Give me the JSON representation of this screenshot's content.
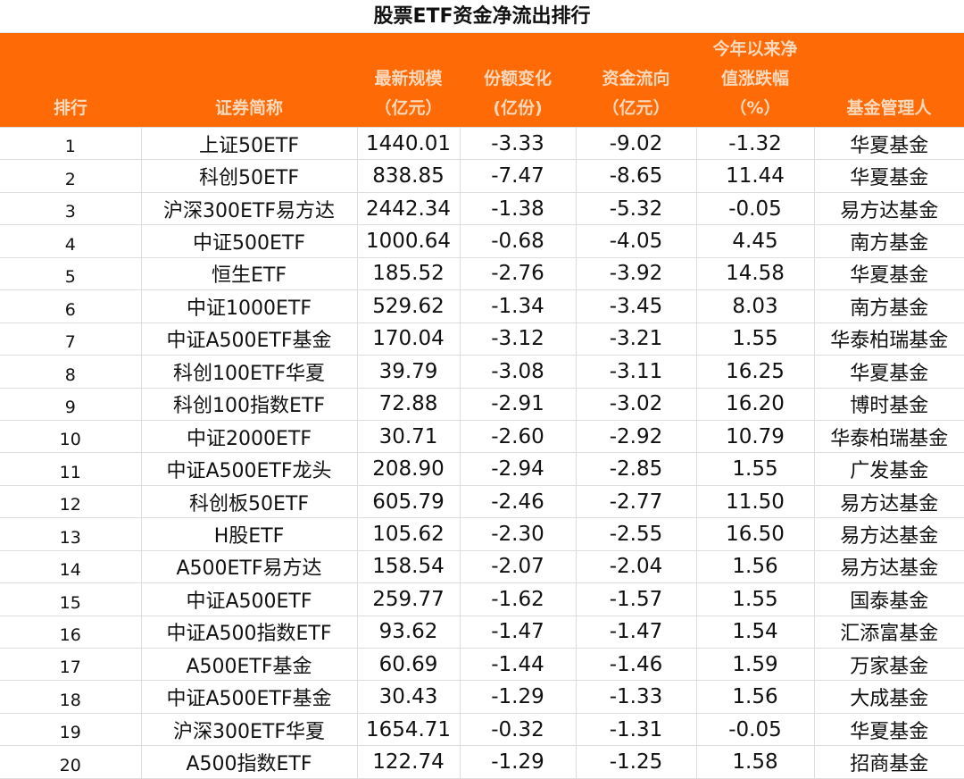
{
  "title": "股票ETF资金净流出排行",
  "header": {
    "rank": "排行",
    "name": "证券简称",
    "scale": [
      "最新规模",
      "（亿元）"
    ],
    "share_change": [
      "份额变化",
      "(亿份)"
    ],
    "flow": [
      "资金流向",
      "（亿元）"
    ],
    "ytd": [
      "今年以来净",
      "值涨跌幅",
      "（%）"
    ],
    "manager": "基金管理人"
  },
  "colors": {
    "header_bg": "#fe6a05",
    "header_text": "#fbd9bd"
  },
  "rows": [
    {
      "rank": "1",
      "name": "上证50ETF",
      "scale": "1440.01",
      "share": "-3.33",
      "flow": "-9.02",
      "ytd": "-1.32",
      "mgr": "华夏基金"
    },
    {
      "rank": "2",
      "name": "科创50ETF",
      "scale": "838.85",
      "share": "-7.47",
      "flow": "-8.65",
      "ytd": "11.44",
      "mgr": "华夏基金"
    },
    {
      "rank": "3",
      "name": "沪深300ETF易方达",
      "scale": "2442.34",
      "share": "-1.38",
      "flow": "-5.32",
      "ytd": "-0.05",
      "mgr": "易方达基金"
    },
    {
      "rank": "4",
      "name": "中证500ETF",
      "scale": "1000.64",
      "share": "-0.68",
      "flow": "-4.05",
      "ytd": "4.45",
      "mgr": "南方基金"
    },
    {
      "rank": "5",
      "name": "恒生ETF",
      "scale": "185.52",
      "share": "-2.76",
      "flow": "-3.92",
      "ytd": "14.58",
      "mgr": "华夏基金"
    },
    {
      "rank": "6",
      "name": "中证1000ETF",
      "scale": "529.62",
      "share": "-1.34",
      "flow": "-3.45",
      "ytd": "8.03",
      "mgr": "南方基金"
    },
    {
      "rank": "7",
      "name": "中证A500ETF基金",
      "scale": "170.04",
      "share": "-3.12",
      "flow": "-3.21",
      "ytd": "1.55",
      "mgr": "华泰柏瑞基金"
    },
    {
      "rank": "8",
      "name": "科创100ETF华夏",
      "scale": "39.79",
      "share": "-3.08",
      "flow": "-3.11",
      "ytd": "16.25",
      "mgr": "华夏基金"
    },
    {
      "rank": "9",
      "name": "科创100指数ETF",
      "scale": "72.88",
      "share": "-2.91",
      "flow": "-3.02",
      "ytd": "16.20",
      "mgr": "博时基金"
    },
    {
      "rank": "10",
      "name": "中证2000ETF",
      "scale": "30.71",
      "share": "-2.60",
      "flow": "-2.92",
      "ytd": "10.79",
      "mgr": "华泰柏瑞基金"
    },
    {
      "rank": "11",
      "name": "中证A500ETF龙头",
      "scale": "208.90",
      "share": "-2.94",
      "flow": "-2.85",
      "ytd": "1.55",
      "mgr": "广发基金"
    },
    {
      "rank": "12",
      "name": "科创板50ETF",
      "scale": "605.79",
      "share": "-2.46",
      "flow": "-2.77",
      "ytd": "11.50",
      "mgr": "易方达基金"
    },
    {
      "rank": "13",
      "name": "H股ETF",
      "scale": "105.62",
      "share": "-2.30",
      "flow": "-2.55",
      "ytd": "16.50",
      "mgr": "易方达基金"
    },
    {
      "rank": "14",
      "name": "A500ETF易方达",
      "scale": "158.54",
      "share": "-2.07",
      "flow": "-2.04",
      "ytd": "1.56",
      "mgr": "易方达基金"
    },
    {
      "rank": "15",
      "name": "中证A500ETF",
      "scale": "259.77",
      "share": "-1.62",
      "flow": "-1.57",
      "ytd": "1.55",
      "mgr": "国泰基金"
    },
    {
      "rank": "16",
      "name": "中证A500指数ETF",
      "scale": "93.62",
      "share": "-1.47",
      "flow": "-1.47",
      "ytd": "1.54",
      "mgr": "汇添富基金"
    },
    {
      "rank": "17",
      "name": "A500ETF基金",
      "scale": "60.69",
      "share": "-1.44",
      "flow": "-1.46",
      "ytd": "1.59",
      "mgr": "万家基金"
    },
    {
      "rank": "18",
      "name": "中证A500ETF基金",
      "scale": "30.43",
      "share": "-1.29",
      "flow": "-1.33",
      "ytd": "1.56",
      "mgr": "大成基金"
    },
    {
      "rank": "19",
      "name": "沪深300ETF华夏",
      "scale": "1654.71",
      "share": "-0.32",
      "flow": "-1.31",
      "ytd": "-0.05",
      "mgr": "华夏基金"
    },
    {
      "rank": "20",
      "name": "A500指数ETF",
      "scale": "122.74",
      "share": "-1.29",
      "flow": "-1.25",
      "ytd": "1.58",
      "mgr": "招商基金"
    }
  ]
}
